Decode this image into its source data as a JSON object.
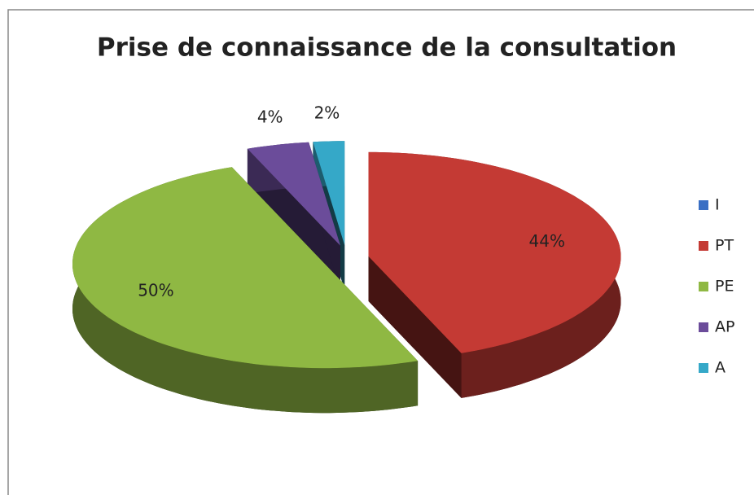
{
  "chart_data": {
    "type": "pie",
    "title": "Prise de connaissance de la consultation",
    "categories": [
      "I",
      "PT",
      "PE",
      "AP",
      "A"
    ],
    "values": [
      0,
      44,
      50,
      4,
      2
    ],
    "value_labels": [
      null,
      "44%",
      "50%",
      "4%",
      "2%"
    ],
    "colors": [
      "#3a6fc4",
      "#c43a34",
      "#8fb843",
      "#6b4c9a",
      "#35a8c8"
    ],
    "legend": "right"
  }
}
